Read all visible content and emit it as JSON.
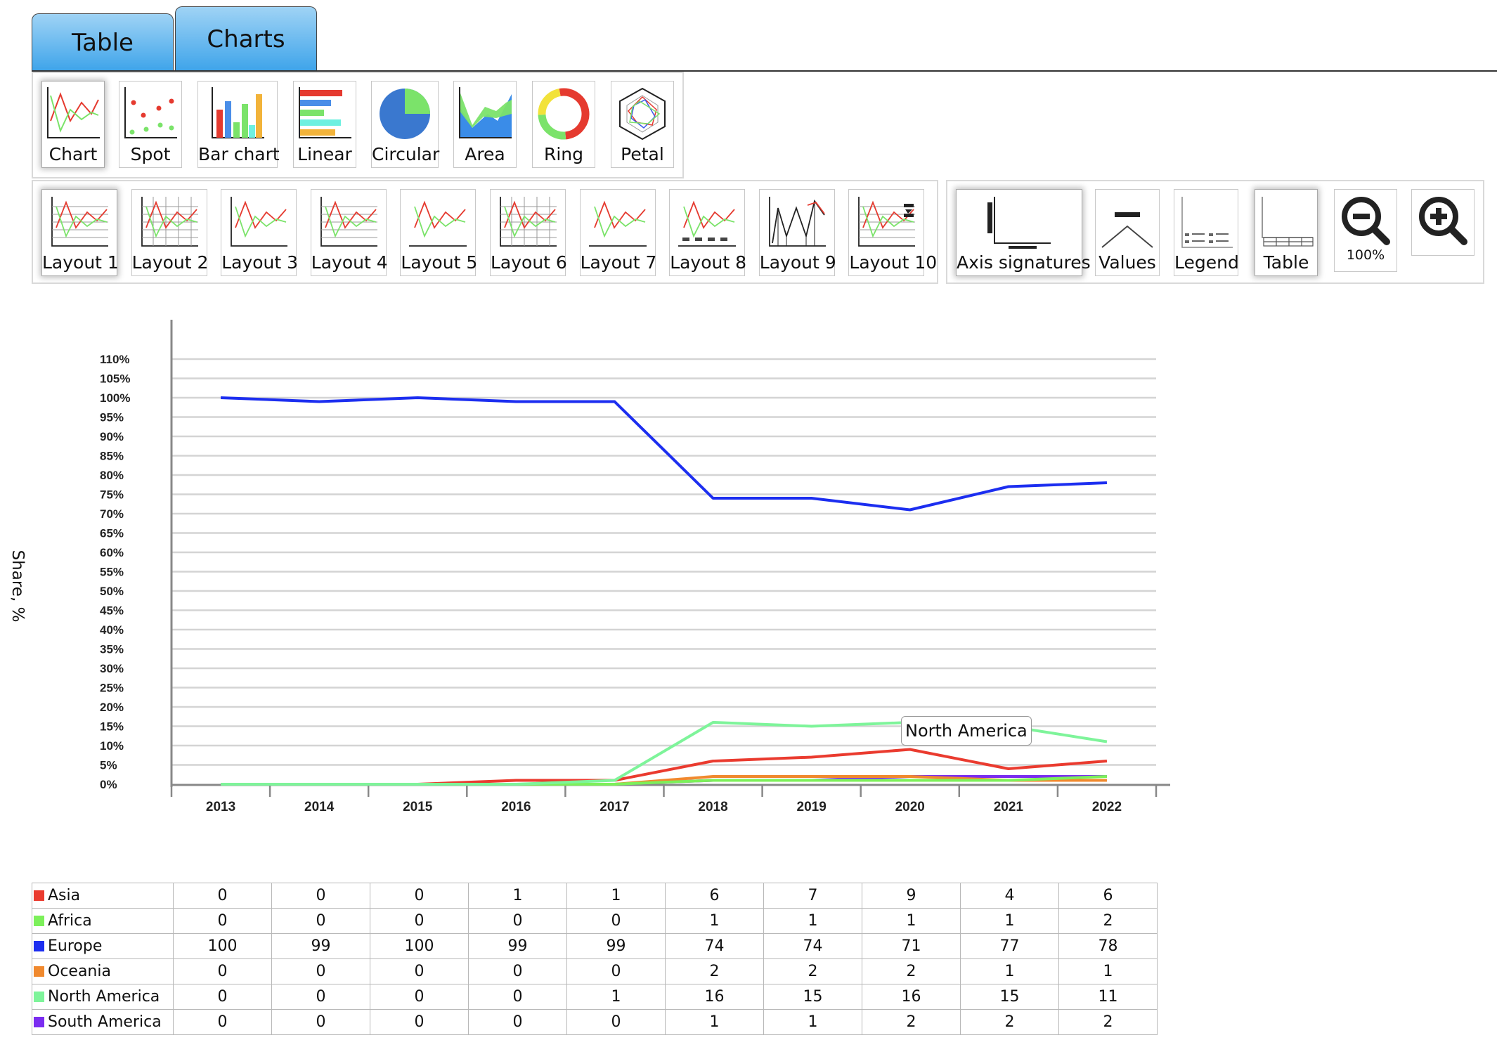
{
  "tabs": [
    {
      "label": "Table"
    },
    {
      "label": "Charts"
    }
  ],
  "chart_types": [
    {
      "label": "Chart",
      "icon": "line-chart-icon",
      "selected": true
    },
    {
      "label": "Spot",
      "icon": "scatter-chart-icon"
    },
    {
      "label": "Bar chart",
      "icon": "bar-chart-icon"
    },
    {
      "label": "Linear",
      "icon": "horizontal-bar-chart-icon"
    },
    {
      "label": "Circular",
      "icon": "pie-chart-icon"
    },
    {
      "label": "Area",
      "icon": "area-chart-icon"
    },
    {
      "label": "Ring",
      "icon": "donut-chart-icon"
    },
    {
      "label": "Petal",
      "icon": "radar-chart-icon"
    }
  ],
  "layouts": [
    {
      "label": "Layout 1",
      "selected": true
    },
    {
      "label": "Layout 2"
    },
    {
      "label": "Layout 3"
    },
    {
      "label": "Layout 4"
    },
    {
      "label": "Layout 5"
    },
    {
      "label": "Layout 6"
    },
    {
      "label": "Layout 7"
    },
    {
      "label": "Layout 8"
    },
    {
      "label": "Layout 9"
    },
    {
      "label": "Layout 10"
    }
  ],
  "options": [
    {
      "label": "Axis signatures",
      "icon": "axis-signatures-icon",
      "selected": true
    },
    {
      "label": "Values",
      "icon": "values-icon"
    },
    {
      "label": "Legend",
      "icon": "legend-icon"
    },
    {
      "label": "Table",
      "icon": "table-icon",
      "selected": true
    }
  ],
  "zoom": {
    "level": "100%",
    "zoom_out_icon": "zoom-out-icon",
    "zoom_in_icon": "zoom-in-icon"
  },
  "tooltip": "North America",
  "chart_data": {
    "type": "line",
    "ylabel": "Share, %",
    "ylim": [
      0,
      110
    ],
    "y_ticks": [
      "0%",
      "5%",
      "10%",
      "15%",
      "20%",
      "25%",
      "30%",
      "35%",
      "40%",
      "45%",
      "50%",
      "55%",
      "60%",
      "65%",
      "70%",
      "75%",
      "80%",
      "85%",
      "90%",
      "95%",
      "100%",
      "105%",
      "110%"
    ],
    "x": [
      "2013",
      "2014",
      "2015",
      "2016",
      "2017",
      "2018",
      "2019",
      "2020",
      "2021",
      "2022"
    ],
    "grid": true,
    "legend": "table-below",
    "series": [
      {
        "name": "Asia",
        "color": "#ea3b2f",
        "values": [
          0,
          0,
          0,
          1,
          1,
          6,
          7,
          9,
          4,
          6
        ]
      },
      {
        "name": "Africa",
        "color": "#7cf05a",
        "values": [
          0,
          0,
          0,
          0,
          0,
          1,
          1,
          1,
          1,
          2
        ]
      },
      {
        "name": "Europe",
        "color": "#1c2ef0",
        "values": [
          100,
          99,
          100,
          99,
          99,
          74,
          74,
          71,
          77,
          78
        ]
      },
      {
        "name": "Oceania",
        "color": "#f0892e",
        "values": [
          0,
          0,
          0,
          0,
          0,
          2,
          2,
          2,
          1,
          1
        ]
      },
      {
        "name": "North America",
        "color": "#7ef49a",
        "values": [
          0,
          0,
          0,
          0,
          1,
          16,
          15,
          16,
          15,
          11
        ]
      },
      {
        "name": "South America",
        "color": "#7a2cf0",
        "values": [
          0,
          0,
          0,
          0,
          0,
          1,
          1,
          2,
          2,
          2
        ]
      }
    ]
  }
}
